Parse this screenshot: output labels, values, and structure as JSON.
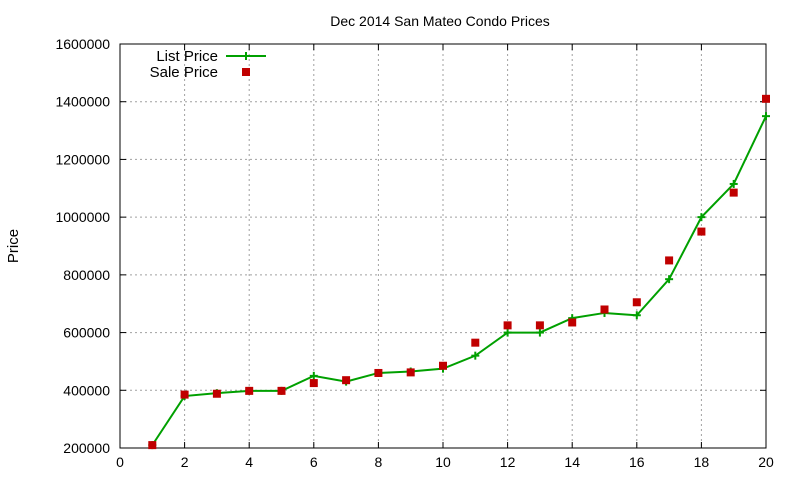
{
  "chart_data": {
    "type": "line",
    "title": "Dec 2014 San Mateo Condo Prices",
    "xlabel": "",
    "ylabel": "Price",
    "xlim": [
      0,
      20
    ],
    "ylim": [
      200000,
      1600000
    ],
    "x_ticks": [
      "0",
      "2",
      "4",
      "6",
      "8",
      "10",
      "12",
      "14",
      "16",
      "18",
      "20"
    ],
    "y_ticks": [
      "200000",
      "400000",
      "600000",
      "800000",
      "1000000",
      "1200000",
      "1400000",
      "1600000"
    ],
    "grid": true,
    "legend_position": "top-left",
    "series": [
      {
        "name": "List Price",
        "style": "line-with-plus-markers",
        "color": "#00a000",
        "x": [
          1,
          2,
          3,
          4,
          5,
          6,
          7,
          8,
          9,
          10,
          11,
          12,
          13,
          14,
          15,
          16,
          17,
          18,
          19,
          20
        ],
        "y": [
          210000,
          380000,
          390000,
          398000,
          398000,
          450000,
          430000,
          460000,
          465000,
          475000,
          520000,
          600000,
          600000,
          650000,
          668000,
          660000,
          785000,
          1000000,
          1115000,
          1350000
        ]
      },
      {
        "name": "Sale Price",
        "style": "square-markers",
        "color": "#c00000",
        "x": [
          1,
          2,
          3,
          4,
          5,
          6,
          7,
          8,
          9,
          10,
          11,
          12,
          13,
          14,
          15,
          16,
          17,
          18,
          19,
          20
        ],
        "y": [
          210000,
          385000,
          388000,
          398000,
          398000,
          425000,
          435000,
          460000,
          462000,
          485000,
          565000,
          625000,
          625000,
          635000,
          680000,
          705000,
          850000,
          950000,
          1085000,
          1410000
        ]
      }
    ]
  }
}
